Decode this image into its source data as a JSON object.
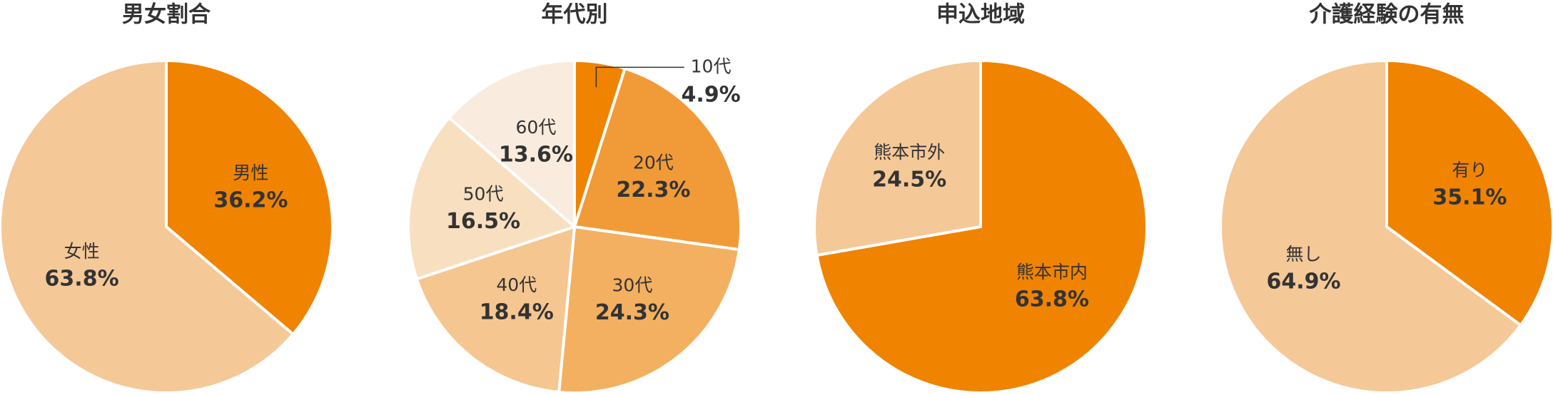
{
  "chart_data": [
    {
      "type": "pie",
      "title": "男女割合",
      "categories": [
        "男性",
        "女性"
      ],
      "values": [
        36.2,
        63.8
      ],
      "value_labels": [
        "36.2%",
        "63.8%"
      ],
      "colors": [
        "#f08300",
        "#f5c898"
      ]
    },
    {
      "type": "pie",
      "title": "年代別",
      "categories": [
        "10代",
        "20代",
        "30代",
        "40代",
        "50代",
        "60代"
      ],
      "values": [
        4.9,
        22.3,
        24.3,
        18.4,
        16.5,
        13.6
      ],
      "value_labels": [
        "4.9%",
        "22.3%",
        "24.3%",
        "18.4%",
        "16.5%",
        "13.6%"
      ],
      "colors": [
        "#f08300",
        "#f19b38",
        "#f3b060",
        "#f5c690",
        "#f7dfc0",
        "#f9ebdd"
      ]
    },
    {
      "type": "pie",
      "title": "申込地域",
      "categories": [
        "熊本市内",
        "熊本市外"
      ],
      "values": [
        63.8,
        24.5
      ],
      "value_labels": [
        "63.8%",
        "24.5%"
      ],
      "colors": [
        "#f08300",
        "#f5c898"
      ]
    },
    {
      "type": "pie",
      "title": "介護経験の有無",
      "categories": [
        "有り",
        "無し"
      ],
      "values": [
        35.1,
        64.9
      ],
      "value_labels": [
        "35.1%",
        "64.9%"
      ],
      "colors": [
        "#f08300",
        "#f5c898"
      ]
    }
  ]
}
